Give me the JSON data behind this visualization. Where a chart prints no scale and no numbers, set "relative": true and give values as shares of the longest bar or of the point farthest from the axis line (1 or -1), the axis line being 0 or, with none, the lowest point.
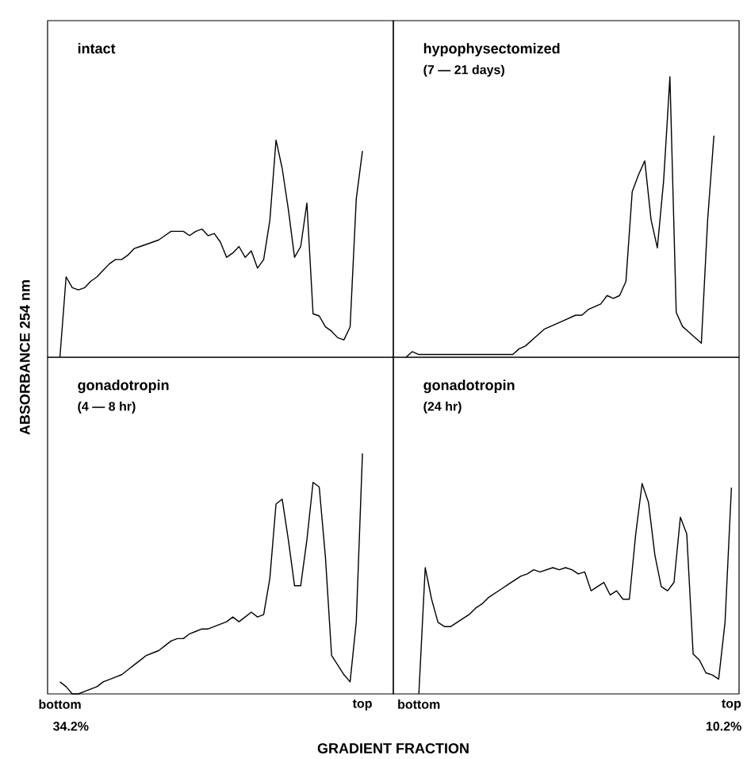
{
  "chart_data": [
    {
      "type": "line",
      "title": "intact",
      "relative": true,
      "tick_labels": false,
      "color": "#000000",
      "categories": [
        null,
        null,
        null,
        null,
        null,
        null,
        null,
        null,
        null,
        null,
        null,
        null,
        null,
        null,
        null,
        null,
        null,
        null,
        null,
        null,
        null,
        null,
        null,
        null,
        null,
        null,
        null,
        null,
        null,
        null,
        null,
        null,
        null,
        null,
        null,
        null,
        null,
        null,
        null,
        null,
        null,
        null,
        null,
        null,
        null,
        null,
        null,
        null,
        null,
        null
      ],
      "values": [
        0,
        0.37,
        0.32,
        0.31,
        0.32,
        0.35,
        0.37,
        0.4,
        0.43,
        0.45,
        0.45,
        0.47,
        0.5,
        0.51,
        0.52,
        0.53,
        0.54,
        0.56,
        0.58,
        0.58,
        0.58,
        0.56,
        0.58,
        0.59,
        0.56,
        0.57,
        0.53,
        0.46,
        0.48,
        0.51,
        0.46,
        0.49,
        0.41,
        0.45,
        0.63,
        1.0,
        0.87,
        0.68,
        0.46,
        0.51,
        0.71,
        0.2,
        0.19,
        0.14,
        0.12,
        0.09,
        0.08,
        0.14,
        0.73,
        0.95
      ]
    },
    {
      "type": "line",
      "title": "hypophysectomized",
      "subtitle": "(7 — 21 days)",
      "relative": true,
      "tick_labels": false,
      "color": "#000000",
      "categories": [
        null,
        null,
        null,
        null,
        null,
        null,
        null,
        null,
        null,
        null,
        null,
        null,
        null,
        null,
        null,
        null,
        null,
        null,
        null,
        null,
        null,
        null,
        null,
        null,
        null,
        null,
        null,
        null,
        null,
        null,
        null,
        null,
        null,
        null,
        null,
        null,
        null,
        null,
        null,
        null,
        null,
        null,
        null,
        null,
        null,
        null,
        null,
        null,
        null,
        null
      ],
      "values": [
        0,
        0.02,
        0.01,
        0.01,
        0.01,
        0.01,
        0.01,
        0.01,
        0.01,
        0.01,
        0.01,
        0.01,
        0.01,
        0.01,
        0.01,
        0.01,
        0.01,
        0.01,
        0.03,
        0.04,
        0.06,
        0.08,
        0.1,
        0.11,
        0.12,
        0.13,
        0.14,
        0.15,
        0.15,
        0.17,
        0.18,
        0.19,
        0.22,
        0.21,
        0.22,
        0.27,
        0.59,
        0.65,
        0.7,
        0.49,
        0.39,
        0.63,
        1.0,
        0.16,
        0.11,
        0.09,
        0.07,
        0.05,
        0.49,
        0.79
      ]
    },
    {
      "type": "line",
      "title": "gonadotropin",
      "subtitle": "(4 — 8 hr)",
      "relative": true,
      "tick_labels": "x",
      "color": "#000000",
      "xlabel": "GRADIENT FRACTION",
      "ylabel": "ABSORBANCE 254 nm",
      "annotations": [
        "34.2%"
      ],
      "categories": [
        "bottom",
        null,
        null,
        null,
        null,
        null,
        null,
        null,
        null,
        null,
        null,
        null,
        null,
        null,
        null,
        null,
        null,
        null,
        null,
        null,
        null,
        null,
        null,
        null,
        null,
        null,
        null,
        null,
        null,
        null,
        null,
        null,
        null,
        null,
        null,
        null,
        null,
        null,
        null,
        null,
        null,
        null,
        null,
        null,
        null,
        null,
        null,
        null,
        null,
        "top"
      ],
      "values": [
        0.05,
        0.03,
        0,
        0,
        0.01,
        0.02,
        0.03,
        0.05,
        0.06,
        0.07,
        0.08,
        0.1,
        0.12,
        0.14,
        0.16,
        0.17,
        0.18,
        0.2,
        0.22,
        0.23,
        0.23,
        0.25,
        0.26,
        0.27,
        0.27,
        0.28,
        0.29,
        0.3,
        0.32,
        0.3,
        0.32,
        0.34,
        0.32,
        0.33,
        0.48,
        0.79,
        0.81,
        0.64,
        0.45,
        0.45,
        0.64,
        0.88,
        0.86,
        0.57,
        0.16,
        0.12,
        0.08,
        0.05,
        0.3,
        1.0
      ]
    },
    {
      "type": "line",
      "title": "gonadotropin",
      "subtitle": "(24 hr)",
      "relative": true,
      "tick_labels": "x",
      "color": "#000000",
      "annotations": [
        "10.2%"
      ],
      "categories": [
        "bottom",
        null,
        null,
        null,
        null,
        null,
        null,
        null,
        null,
        null,
        null,
        null,
        null,
        null,
        null,
        null,
        null,
        null,
        null,
        null,
        null,
        null,
        null,
        null,
        null,
        null,
        null,
        null,
        null,
        null,
        null,
        null,
        null,
        null,
        null,
        null,
        null,
        null,
        null,
        null,
        null,
        null,
        null,
        null,
        null,
        null,
        null,
        null,
        null,
        "top"
      ],
      "values": [
        0,
        0.6,
        0.45,
        0.34,
        0.32,
        0.32,
        0.34,
        0.36,
        0.38,
        0.41,
        0.43,
        0.46,
        0.48,
        0.5,
        0.52,
        0.54,
        0.56,
        0.57,
        0.59,
        0.58,
        0.59,
        0.6,
        0.59,
        0.6,
        0.59,
        0.57,
        0.58,
        0.49,
        0.51,
        0.53,
        0.47,
        0.49,
        0.45,
        0.45,
        0.76,
        1.0,
        0.91,
        0.66,
        0.51,
        0.49,
        0.53,
        0.84,
        0.76,
        0.19,
        0.16,
        0.1,
        0.09,
        0.07,
        0.34,
        0.98
      ]
    }
  ]
}
